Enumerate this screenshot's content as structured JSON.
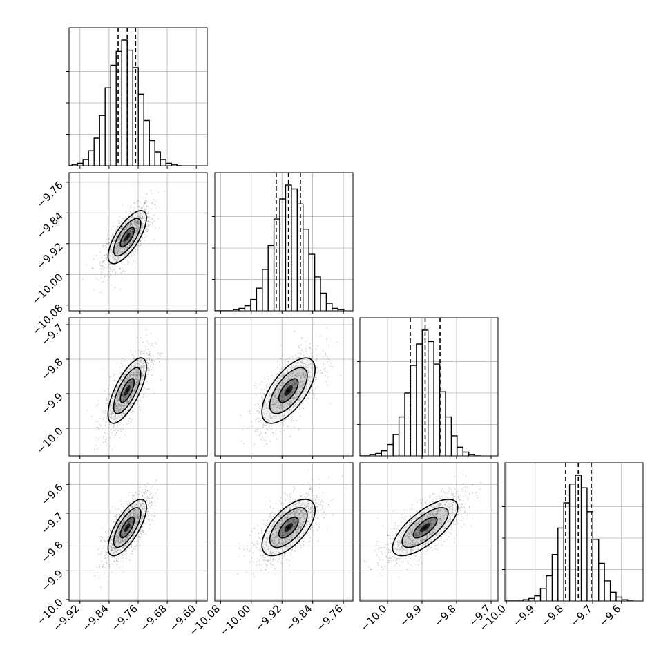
{
  "chart_data": {
    "type": "corner",
    "grid": true,
    "colors": {
      "line": "#000000",
      "grid": "#b0b0b0",
      "density": "#000000",
      "scatter": "#555555"
    },
    "parameters": [
      {
        "range": [
          -9.95,
          -9.57
        ],
        "median": -9.79,
        "q16": -9.815,
        "q84": -9.767,
        "tick_values": [
          -9.92,
          -9.84,
          -9.76,
          -9.68,
          -9.6
        ],
        "tick_labels": [
          "−9.92",
          "−9.84",
          "−9.76",
          "−9.68",
          "−9.60"
        ]
      },
      {
        "range": [
          -10.095,
          -9.735
        ],
        "median": -9.903,
        "q16": -9.935,
        "q84": -9.872,
        "tick_values": [
          -10.08,
          -10.0,
          -9.92,
          -9.84,
          -9.76
        ],
        "tick_labels": [
          "−10.08",
          "−10.00",
          "−9.92",
          "−9.84",
          "−9.76"
        ]
      },
      {
        "range": [
          -10.08,
          -9.68
        ],
        "median": -9.891,
        "q16": -9.934,
        "q84": -9.848,
        "tick_values": [
          -10.0,
          -9.9,
          -9.8,
          -9.7
        ],
        "tick_labels": [
          "−10.0",
          "−9.9",
          "−9.8",
          "−9.7"
        ]
      },
      {
        "range": [
          -10.005,
          -9.525
        ],
        "median": -9.75,
        "q16": -9.794,
        "q84": -9.705,
        "tick_values": [
          -10.0,
          -9.9,
          -9.8,
          -9.7,
          -9.6
        ],
        "tick_labels": [
          "−10.0",
          "−9.9",
          "−9.8",
          "−9.7",
          "−9.6"
        ]
      }
    ],
    "histograms": [
      [
        1,
        2,
        5,
        12,
        22,
        40,
        62,
        80,
        91,
        100,
        92,
        78,
        57,
        36,
        20,
        11,
        5,
        2,
        1,
        0
      ],
      [
        1,
        2,
        4,
        9,
        18,
        33,
        52,
        73,
        89,
        100,
        97,
        85,
        65,
        45,
        27,
        14,
        6,
        2,
        1
      ],
      [
        1,
        2,
        4,
        9,
        17,
        31,
        50,
        72,
        89,
        100,
        91,
        73,
        51,
        31,
        16,
        7,
        3,
        1,
        0
      ],
      [
        1,
        2,
        4,
        10,
        20,
        37,
        58,
        78,
        93,
        100,
        90,
        71,
        49,
        30,
        16,
        7,
        3,
        1,
        0
      ]
    ],
    "correlations": {
      "1-0": 0.72,
      "2-0": 0.72,
      "2-1": 0.65,
      "3-0": 0.72,
      "3-1": 0.62,
      "3-2": 0.72
    }
  }
}
